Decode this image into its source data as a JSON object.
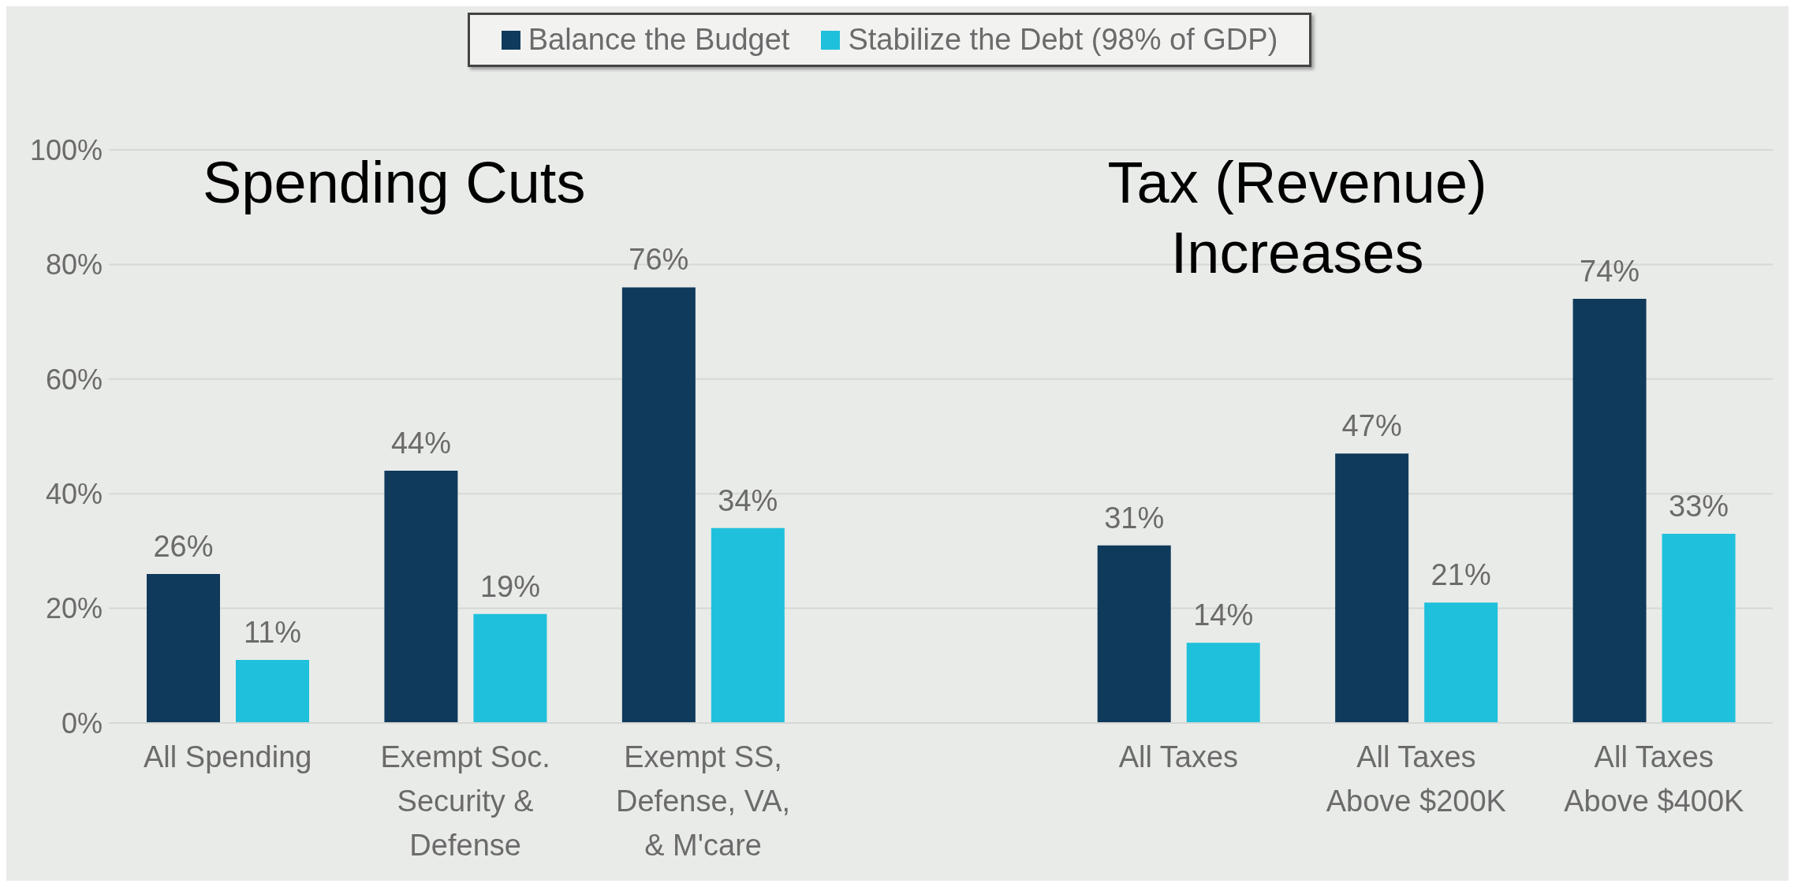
{
  "chart_data": {
    "type": "bar",
    "categories": [
      "All Spending",
      "Exempt Soc. Security & Defense",
      "Exempt SS, Defense, VA, & M'care",
      null,
      "All Taxes",
      "All Taxes Above $200K",
      "All Taxes Above $400K"
    ],
    "series": [
      {
        "name": "Balance the Budget",
        "color": "#0f3a5c",
        "values": [
          26,
          44,
          76,
          null,
          31,
          47,
          74
        ],
        "value_labels": [
          "26%",
          "44%",
          "76%",
          null,
          "31%",
          "47%",
          "74%"
        ]
      },
      {
        "name": "Stabilize the Debt (98% of GDP)",
        "color": "#1fc0dc",
        "values": [
          11,
          19,
          34,
          null,
          14,
          21,
          33
        ],
        "value_labels": [
          "11%",
          "19%",
          "34%",
          null,
          "14%",
          "21%",
          "33%"
        ]
      }
    ],
    "ylim": [
      0,
      100
    ],
    "yticks": [
      {
        "value": 0,
        "label": "0%"
      },
      {
        "value": 20,
        "label": "20%"
      },
      {
        "value": 40,
        "label": "40%"
      },
      {
        "value": 60,
        "label": "60%"
      },
      {
        "value": 80,
        "label": "80%"
      },
      {
        "value": 100,
        "label": "100%"
      }
    ],
    "grid": "y",
    "legend": "top",
    "annotations": [
      "Spending Cuts",
      "Tax (Revenue) Increases"
    ]
  }
}
